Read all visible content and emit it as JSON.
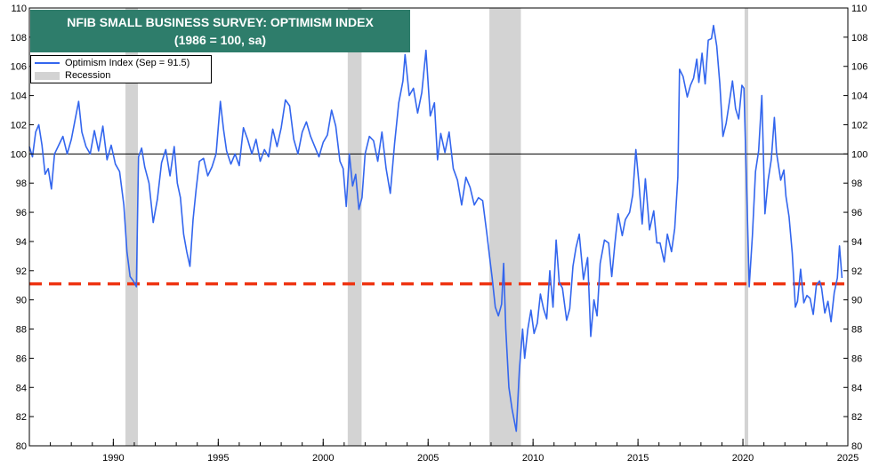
{
  "title": {
    "line1": "NFIB SMALL BUSINESS SURVEY: OPTIMISM INDEX",
    "line2": "(1986 = 100, sa)"
  },
  "legend": {
    "series_label": "Optimism Index (Sep = 91.5)",
    "recession_label": "Recession"
  },
  "colors": {
    "series": "#3366ee",
    "recession": "#d3d3d3",
    "dashed_line": "#ee3311",
    "title_bg": "#2e7d6b"
  },
  "chart_data": {
    "type": "line",
    "title": "NFIB SMALL BUSINESS SURVEY: OPTIMISM INDEX (1986 = 100, sa)",
    "xlim": [
      1986.0,
      2025.0
    ],
    "ylim": [
      80,
      110
    ],
    "x_ticks": [
      1990,
      1995,
      2000,
      2005,
      2010,
      2015,
      2020,
      2025
    ],
    "y_ticks": [
      80,
      82,
      84,
      86,
      88,
      90,
      92,
      94,
      96,
      98,
      100,
      102,
      104,
      106,
      108,
      110
    ],
    "reference_lines": [
      {
        "y": 100,
        "style": "solid",
        "color": "#000000"
      },
      {
        "y": 91.1,
        "style": "dashed",
        "color": "#ee3311"
      }
    ],
    "recessions": [
      [
        1990.58,
        1991.17
      ],
      [
        2001.17,
        2001.83
      ],
      [
        2007.92,
        2009.42
      ],
      [
        2020.08,
        2020.25
      ]
    ],
    "series": [
      {
        "name": "Optimism Index (Sep = 91.5)",
        "points": [
          [
            1986.0,
            100.5
          ],
          [
            1986.15,
            99.8
          ],
          [
            1986.3,
            101.5
          ],
          [
            1986.45,
            102.0
          ],
          [
            1986.6,
            100.6
          ],
          [
            1986.75,
            98.6
          ],
          [
            1986.9,
            99.0
          ],
          [
            1987.05,
            97.6
          ],
          [
            1987.2,
            100.0
          ],
          [
            1987.4,
            100.6
          ],
          [
            1987.6,
            101.2
          ],
          [
            1987.8,
            100.0
          ],
          [
            1988.0,
            101.0
          ],
          [
            1988.2,
            102.5
          ],
          [
            1988.35,
            103.6
          ],
          [
            1988.5,
            101.5
          ],
          [
            1988.7,
            100.5
          ],
          [
            1988.9,
            100.0
          ],
          [
            1989.1,
            101.6
          ],
          [
            1989.3,
            100.2
          ],
          [
            1989.5,
            101.9
          ],
          [
            1989.7,
            99.6
          ],
          [
            1989.9,
            100.6
          ],
          [
            1990.1,
            99.3
          ],
          [
            1990.3,
            98.8
          ],
          [
            1990.5,
            96.5
          ],
          [
            1990.65,
            93.3
          ],
          [
            1990.8,
            91.6
          ],
          [
            1990.95,
            91.3
          ],
          [
            1991.1,
            90.9
          ],
          [
            1991.2,
            99.8
          ],
          [
            1991.35,
            100.4
          ],
          [
            1991.5,
            99.1
          ],
          [
            1991.7,
            98.0
          ],
          [
            1991.9,
            95.3
          ],
          [
            1992.1,
            96.9
          ],
          [
            1992.3,
            99.4
          ],
          [
            1992.5,
            100.3
          ],
          [
            1992.7,
            98.5
          ],
          [
            1992.9,
            100.5
          ],
          [
            1993.05,
            98.0
          ],
          [
            1993.2,
            97.0
          ],
          [
            1993.35,
            94.5
          ],
          [
            1993.5,
            93.3
          ],
          [
            1993.65,
            92.3
          ],
          [
            1993.8,
            95.5
          ],
          [
            1993.95,
            97.6
          ],
          [
            1994.1,
            99.5
          ],
          [
            1994.3,
            99.7
          ],
          [
            1994.5,
            98.5
          ],
          [
            1994.7,
            99.1
          ],
          [
            1994.9,
            100.0
          ],
          [
            1995.1,
            103.6
          ],
          [
            1995.25,
            101.7
          ],
          [
            1995.4,
            100.2
          ],
          [
            1995.6,
            99.3
          ],
          [
            1995.8,
            100.0
          ],
          [
            1996.0,
            99.2
          ],
          [
            1996.2,
            101.8
          ],
          [
            1996.4,
            101.0
          ],
          [
            1996.6,
            100.0
          ],
          [
            1996.8,
            101.0
          ],
          [
            1997.0,
            99.5
          ],
          [
            1997.2,
            100.3
          ],
          [
            1997.4,
            99.8
          ],
          [
            1997.6,
            101.7
          ],
          [
            1997.8,
            100.5
          ],
          [
            1998.0,
            101.8
          ],
          [
            1998.2,
            103.7
          ],
          [
            1998.4,
            103.3
          ],
          [
            1998.6,
            101.0
          ],
          [
            1998.8,
            100.0
          ],
          [
            1999.0,
            101.5
          ],
          [
            1999.2,
            102.2
          ],
          [
            1999.4,
            101.2
          ],
          [
            1999.6,
            100.5
          ],
          [
            1999.8,
            99.8
          ],
          [
            2000.0,
            100.8
          ],
          [
            2000.2,
            101.3
          ],
          [
            2000.4,
            103.0
          ],
          [
            2000.6,
            101.9
          ],
          [
            2000.8,
            99.5
          ],
          [
            2000.95,
            99.0
          ],
          [
            2001.1,
            96.4
          ],
          [
            2001.25,
            100.0
          ],
          [
            2001.4,
            97.8
          ],
          [
            2001.55,
            98.6
          ],
          [
            2001.7,
            96.2
          ],
          [
            2001.85,
            97.0
          ],
          [
            2002.0,
            100.0
          ],
          [
            2002.2,
            101.2
          ],
          [
            2002.4,
            100.9
          ],
          [
            2002.6,
            99.5
          ],
          [
            2002.8,
            101.5
          ],
          [
            2003.0,
            99.0
          ],
          [
            2003.2,
            97.3
          ],
          [
            2003.4,
            100.7
          ],
          [
            2003.6,
            103.5
          ],
          [
            2003.8,
            105.0
          ],
          [
            2003.9,
            106.8
          ],
          [
            2004.1,
            104.0
          ],
          [
            2004.3,
            104.5
          ],
          [
            2004.5,
            102.8
          ],
          [
            2004.7,
            104.2
          ],
          [
            2004.9,
            107.1
          ],
          [
            2005.1,
            102.6
          ],
          [
            2005.3,
            103.5
          ],
          [
            2005.45,
            99.6
          ],
          [
            2005.6,
            101.4
          ],
          [
            2005.8,
            100.1
          ],
          [
            2006.0,
            101.5
          ],
          [
            2006.2,
            99.0
          ],
          [
            2006.4,
            98.2
          ],
          [
            2006.6,
            96.5
          ],
          [
            2006.8,
            98.4
          ],
          [
            2007.0,
            97.7
          ],
          [
            2007.2,
            96.5
          ],
          [
            2007.4,
            97.0
          ],
          [
            2007.6,
            96.8
          ],
          [
            2007.8,
            94.5
          ],
          [
            2007.95,
            92.7
          ],
          [
            2008.05,
            91.5
          ],
          [
            2008.2,
            89.5
          ],
          [
            2008.35,
            88.9
          ],
          [
            2008.5,
            89.7
          ],
          [
            2008.6,
            92.5
          ],
          [
            2008.7,
            88.0
          ],
          [
            2008.85,
            84.0
          ],
          [
            2009.0,
            82.5
          ],
          [
            2009.2,
            81.0
          ],
          [
            2009.35,
            85.2
          ],
          [
            2009.5,
            88.0
          ],
          [
            2009.6,
            86.0
          ],
          [
            2009.75,
            88.0
          ],
          [
            2009.9,
            89.3
          ],
          [
            2010.05,
            87.7
          ],
          [
            2010.2,
            88.4
          ],
          [
            2010.35,
            90.4
          ],
          [
            2010.5,
            89.4
          ],
          [
            2010.65,
            88.7
          ],
          [
            2010.8,
            92.0
          ],
          [
            2010.95,
            89.5
          ],
          [
            2011.1,
            94.1
          ],
          [
            2011.25,
            91.2
          ],
          [
            2011.4,
            90.8
          ],
          [
            2011.6,
            88.6
          ],
          [
            2011.75,
            89.4
          ],
          [
            2011.9,
            92.3
          ],
          [
            2012.05,
            93.6
          ],
          [
            2012.2,
            94.5
          ],
          [
            2012.4,
            91.4
          ],
          [
            2012.6,
            92.9
          ],
          [
            2012.75,
            87.5
          ],
          [
            2012.9,
            90.0
          ],
          [
            2013.05,
            88.9
          ],
          [
            2013.2,
            92.5
          ],
          [
            2013.4,
            94.1
          ],
          [
            2013.6,
            93.9
          ],
          [
            2013.75,
            91.6
          ],
          [
            2013.9,
            93.9
          ],
          [
            2014.05,
            95.9
          ],
          [
            2014.25,
            94.4
          ],
          [
            2014.4,
            95.5
          ],
          [
            2014.6,
            96.0
          ],
          [
            2014.75,
            97.2
          ],
          [
            2014.9,
            100.3
          ],
          [
            2015.05,
            97.9
          ],
          [
            2015.2,
            95.2
          ],
          [
            2015.35,
            98.3
          ],
          [
            2015.55,
            94.8
          ],
          [
            2015.75,
            96.1
          ],
          [
            2015.9,
            93.9
          ],
          [
            2016.05,
            93.9
          ],
          [
            2016.25,
            92.6
          ],
          [
            2016.4,
            94.5
          ],
          [
            2016.6,
            93.3
          ],
          [
            2016.75,
            94.9
          ],
          [
            2016.9,
            98.4
          ],
          [
            2016.98,
            105.8
          ],
          [
            2017.15,
            105.3
          ],
          [
            2017.35,
            103.9
          ],
          [
            2017.5,
            104.7
          ],
          [
            2017.65,
            105.2
          ],
          [
            2017.8,
            106.5
          ],
          [
            2017.9,
            104.9
          ],
          [
            2018.05,
            106.9
          ],
          [
            2018.2,
            104.8
          ],
          [
            2018.35,
            107.8
          ],
          [
            2018.5,
            107.9
          ],
          [
            2018.6,
            108.8
          ],
          [
            2018.75,
            107.4
          ],
          [
            2018.9,
            104.8
          ],
          [
            2019.05,
            101.2
          ],
          [
            2019.2,
            102.1
          ],
          [
            2019.35,
            103.5
          ],
          [
            2019.5,
            105.0
          ],
          [
            2019.65,
            103.1
          ],
          [
            2019.8,
            102.4
          ],
          [
            2019.95,
            104.7
          ],
          [
            2020.05,
            104.5
          ],
          [
            2020.2,
            96.4
          ],
          [
            2020.3,
            90.9
          ],
          [
            2020.45,
            94.4
          ],
          [
            2020.6,
            98.8
          ],
          [
            2020.75,
            100.2
          ],
          [
            2020.9,
            104.0
          ],
          [
            2021.05,
            95.9
          ],
          [
            2021.2,
            98.2
          ],
          [
            2021.35,
            99.6
          ],
          [
            2021.5,
            102.5
          ],
          [
            2021.6,
            100.1
          ],
          [
            2021.8,
            98.2
          ],
          [
            2021.95,
            98.9
          ],
          [
            2022.05,
            97.1
          ],
          [
            2022.2,
            95.7
          ],
          [
            2022.35,
            93.2
          ],
          [
            2022.5,
            89.5
          ],
          [
            2022.6,
            89.9
          ],
          [
            2022.75,
            92.1
          ],
          [
            2022.9,
            89.8
          ],
          [
            2023.05,
            90.3
          ],
          [
            2023.2,
            90.1
          ],
          [
            2023.35,
            89.0
          ],
          [
            2023.5,
            91.0
          ],
          [
            2023.65,
            91.3
          ],
          [
            2023.75,
            90.8
          ],
          [
            2023.9,
            89.1
          ],
          [
            2024.05,
            89.9
          ],
          [
            2024.2,
            88.5
          ],
          [
            2024.35,
            90.5
          ],
          [
            2024.5,
            91.5
          ],
          [
            2024.6,
            93.7
          ],
          [
            2024.72,
            91.5
          ]
        ]
      }
    ]
  }
}
